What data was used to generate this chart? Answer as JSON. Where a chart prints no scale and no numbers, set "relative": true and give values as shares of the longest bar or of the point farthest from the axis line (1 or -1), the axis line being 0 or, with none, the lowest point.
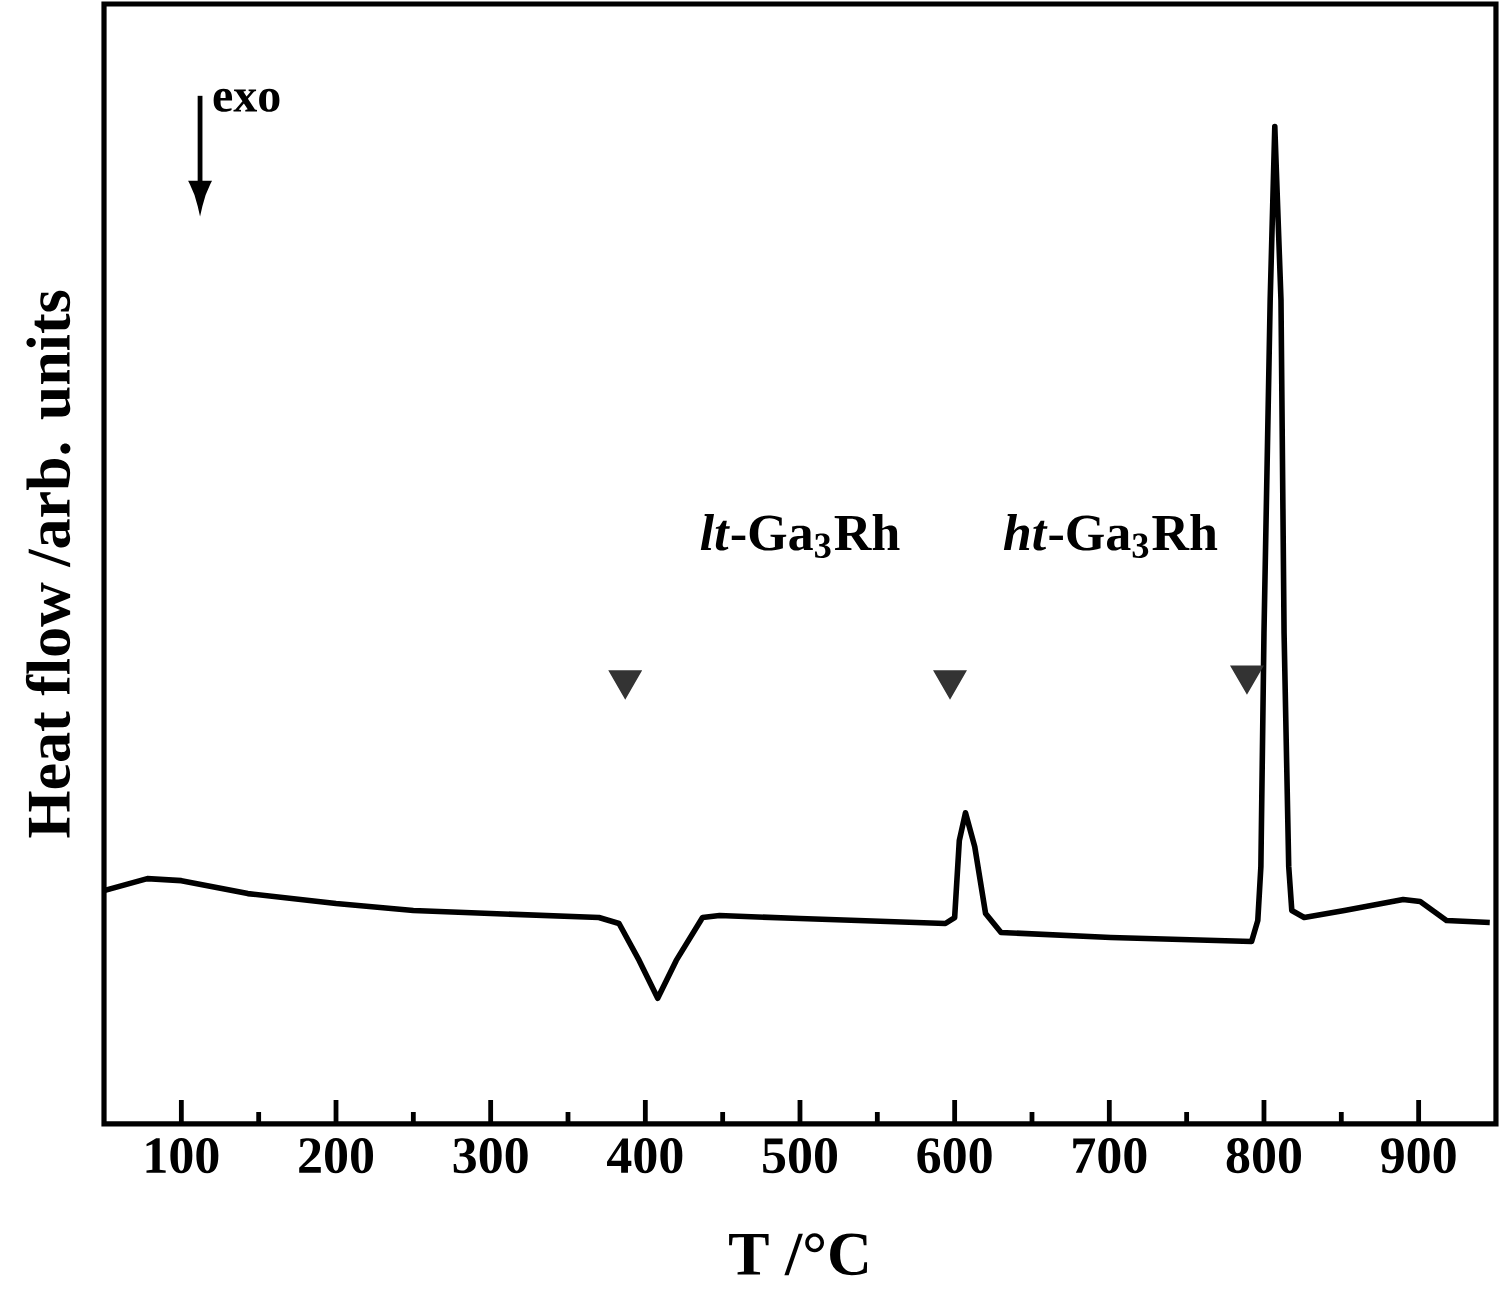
{
  "chart_data": {
    "type": "line",
    "relative": true,
    "xlabel": "T /°C",
    "ylabel": "Heat flow /arb. units",
    "xlim": [
      50,
      950
    ],
    "xticks": [
      100,
      {
        "value": 150,
        "label": null
      },
      200,
      {
        "value": 250,
        "label": null
      },
      300,
      {
        "value": 350,
        "label": null
      },
      400,
      {
        "value": 450,
        "label": null
      },
      500,
      {
        "value": 550,
        "label": null
      },
      600,
      {
        "value": 650,
        "label": null
      },
      700,
      {
        "value": 750,
        "label": null
      },
      800,
      {
        "value": 850,
        "label": null
      },
      900
    ],
    "annotations": [
      "exo",
      "*lt*-Ga$_{3}$Rh",
      "*ht*-Ga$_{3}$Rh"
    ],
    "series": [
      {
        "color": "#000000",
        "x": [
          50,
          78,
          100,
          143,
          200,
          250,
          300,
          370,
          383,
          396,
          408,
          420,
          437,
          448,
          500,
          594,
          600,
          603,
          607,
          613,
          620,
          630,
          701,
          792,
          796,
          798,
          800,
          804,
          807,
          811,
          813,
          816,
          818,
          826,
          852,
          890,
          901,
          918,
          946
        ],
        "values": [
          0.234,
          0.246,
          0.244,
          0.231,
          0.221,
          0.214,
          0.211,
          0.207,
          0.201,
          0.164,
          0.126,
          0.164,
          0.207,
          0.209,
          0.206,
          0.201,
          0.207,
          0.284,
          0.312,
          0.278,
          0.211,
          0.192,
          0.187,
          0.183,
          0.204,
          0.258,
          0.492,
          0.826,
          1.0,
          0.826,
          0.492,
          0.258,
          0.214,
          0.207,
          0.214,
          0.225,
          0.223,
          0.204,
          0.202
        ]
      },
      {
        "type": "scatter",
        "marker": "triangle",
        "color": "#333333",
        "x": [
          387,
          597,
          789
        ],
        "values": [
          0.445,
          0.445,
          0.45
        ]
      }
    ]
  }
}
